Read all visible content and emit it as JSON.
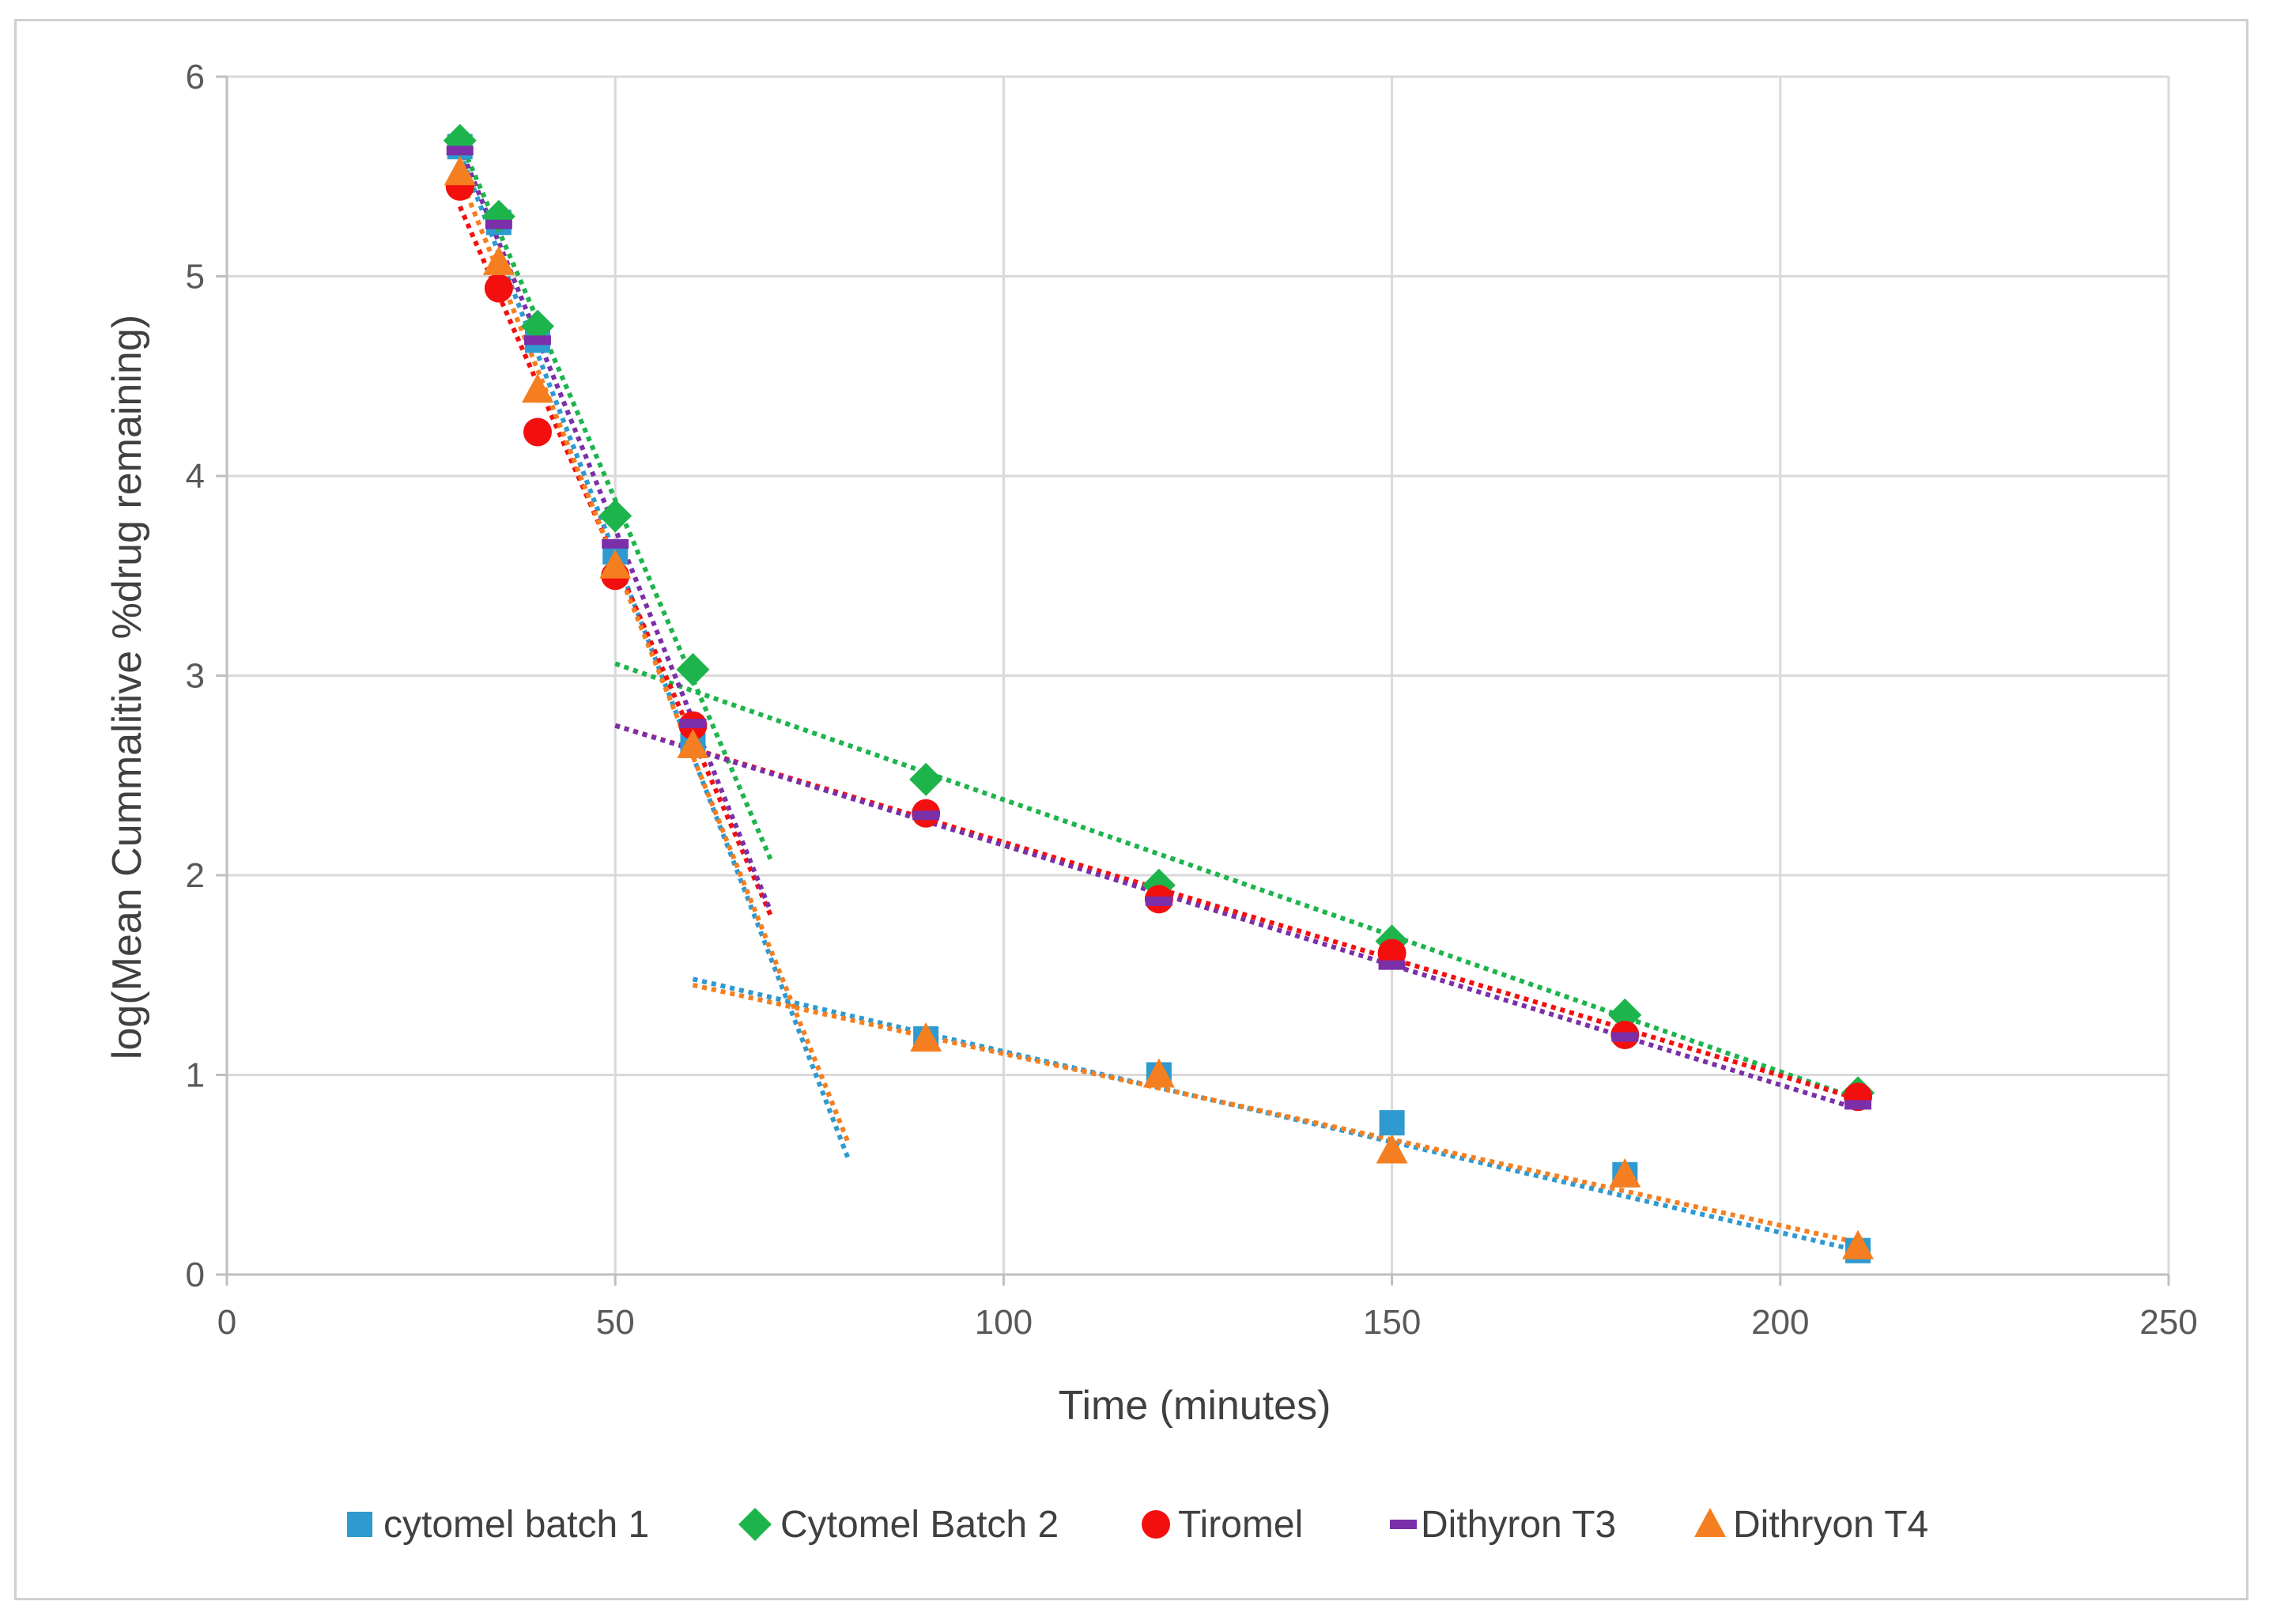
{
  "chart_data": {
    "type": "scatter",
    "title": "",
    "xlabel": "Time (minutes)",
    "ylabel": "log(Mean Cummalitive %drug remaining)",
    "xlim": [
      0,
      250
    ],
    "ylim": [
      0,
      6
    ],
    "x_ticks": [
      "0",
      "50",
      "100",
      "150",
      "200",
      "250"
    ],
    "y_ticks": [
      "0",
      "1",
      "2",
      "3",
      "4",
      "5",
      "6"
    ],
    "grid": true,
    "legend_position": "bottom",
    "series": [
      {
        "name": "cytomel batch 1",
        "marker": "square",
        "color": "#2E9AD0",
        "x": [
          30,
          35,
          40,
          50,
          60,
          90,
          120,
          150,
          180,
          210
        ],
        "y": [
          5.65,
          5.27,
          4.68,
          3.62,
          2.65,
          1.18,
          1.0,
          0.76,
          0.5,
          0.12
        ],
        "trendlines": [
          {
            "x": [
              30,
              80
            ],
            "y": [
              5.62,
              0.58
            ]
          },
          {
            "x": [
              60,
              210
            ],
            "y": [
              1.48,
              0.12
            ]
          }
        ]
      },
      {
        "name": "Cytomel Batch 2",
        "marker": "diamond",
        "color": "#1DB44C",
        "x": [
          30,
          35,
          40,
          50,
          60,
          90,
          120,
          150,
          180,
          210
        ],
        "y": [
          5.68,
          5.3,
          4.75,
          3.8,
          3.03,
          2.48,
          1.95,
          1.67,
          1.3,
          0.91
        ],
        "trendlines": [
          {
            "x": [
              30,
              70
            ],
            "y": [
              5.68,
              2.08
            ]
          },
          {
            "x": [
              50,
              210
            ],
            "y": [
              3.06,
              0.88
            ]
          }
        ]
      },
      {
        "name": "Tiromel",
        "marker": "circle",
        "color": "#F40F0F",
        "x": [
          30,
          35,
          40,
          50,
          60,
          90,
          120,
          150,
          180,
          210
        ],
        "y": [
          5.45,
          4.94,
          4.22,
          3.5,
          2.75,
          2.31,
          1.88,
          1.61,
          1.2,
          0.89
        ],
        "trendlines": [
          {
            "x": [
              30,
              70
            ],
            "y": [
              5.35,
              1.8
            ]
          },
          {
            "x": [
              50,
              210
            ],
            "y": [
              2.75,
              0.88
            ]
          }
        ]
      },
      {
        "name": "Dithyron T3",
        "marker": "dash",
        "color": "#7B2FA8",
        "x": [
          30,
          35,
          40,
          50,
          60,
          90,
          120,
          150,
          180,
          210
        ],
        "y": [
          5.63,
          5.26,
          4.68,
          3.66,
          2.76,
          2.3,
          1.87,
          1.55,
          1.19,
          0.85
        ],
        "trendlines": [
          {
            "x": [
              30,
              70
            ],
            "y": [
              5.65,
              1.82
            ]
          },
          {
            "x": [
              50,
              210
            ],
            "y": [
              2.75,
              0.83
            ]
          }
        ]
      },
      {
        "name": "Dithryon T4",
        "marker": "triangle",
        "color": "#F57F20",
        "x": [
          30,
          35,
          40,
          50,
          60,
          90,
          120,
          150,
          180,
          210
        ],
        "y": [
          5.52,
          5.07,
          4.43,
          3.55,
          2.65,
          1.18,
          1.0,
          0.62,
          0.5,
          0.14
        ],
        "trendlines": [
          {
            "x": [
              30,
              80
            ],
            "y": [
              5.5,
              0.66
            ]
          },
          {
            "x": [
              60,
              210
            ],
            "y": [
              1.45,
              0.16
            ]
          }
        ]
      }
    ]
  }
}
